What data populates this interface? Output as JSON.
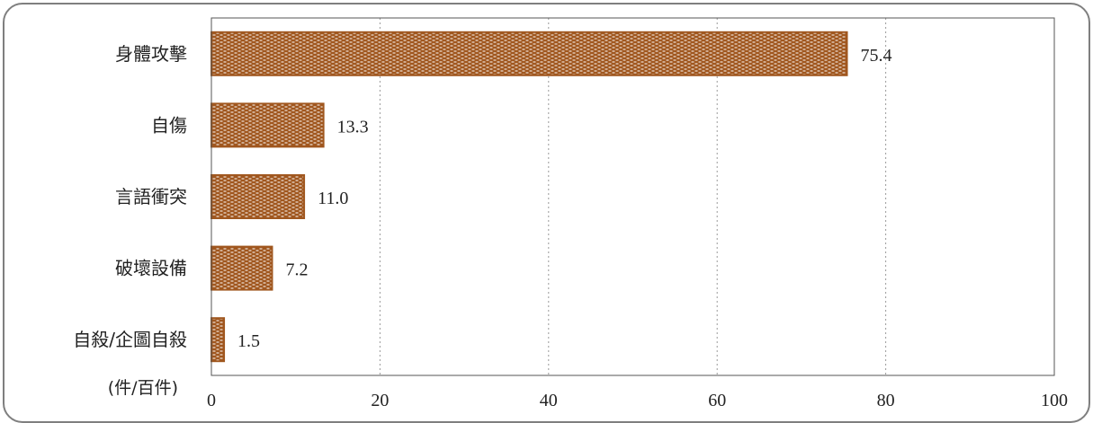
{
  "colors": {
    "bar_fill": "#a0571f",
    "bar_pattern": "#ffffff",
    "grid": "#9a9a9a",
    "axis": "#555555"
  },
  "chart_data": {
    "type": "bar",
    "orientation": "horizontal",
    "categories": [
      "身體攻擊",
      "自傷",
      "言語衝突",
      "破壞設備",
      "自殺/企圖自殺"
    ],
    "values": [
      75.4,
      13.3,
      11.0,
      7.2,
      1.5
    ],
    "value_labels": [
      "75.4",
      "13.3",
      "11.0",
      "7.2",
      "1.5"
    ],
    "unit_label": "(件/百件)",
    "xlim": [
      0,
      100
    ],
    "x_ticks": [
      "0",
      "20",
      "40",
      "60",
      "80",
      "100"
    ],
    "grid": "vertical-dotted"
  }
}
